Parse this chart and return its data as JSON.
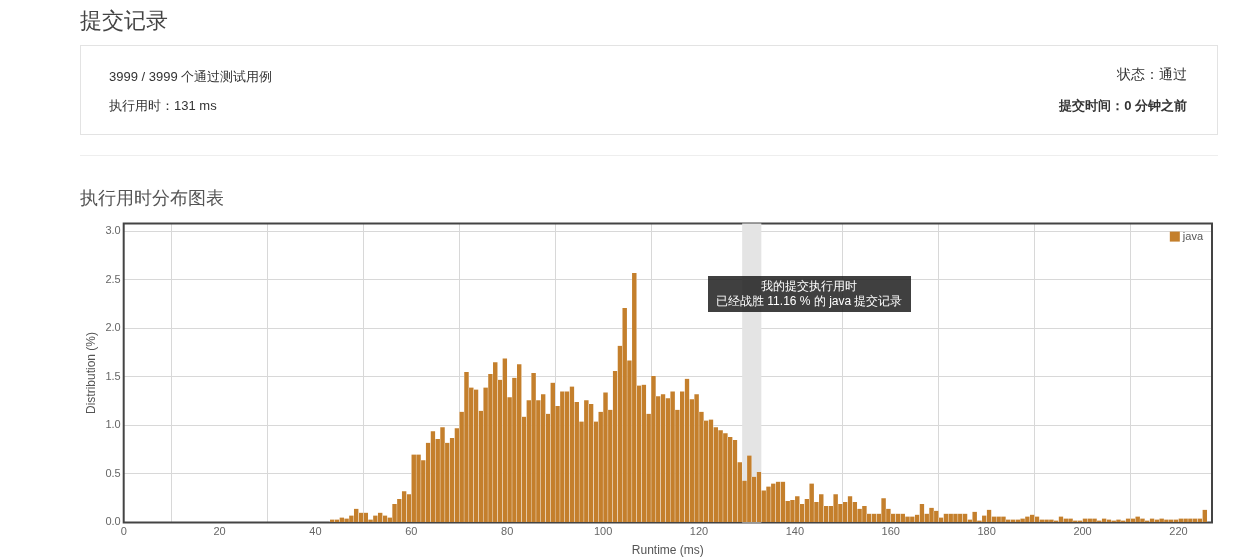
{
  "chart_data": {
    "type": "histogram",
    "title": "执行用时分布图表",
    "xlabel": "Runtime (ms)",
    "ylabel": "Distribution (%)",
    "annotations": [
      "提交记录",
      "3999 / 3999 个通过测试用例",
      "执行用时：131 ms",
      "状态：通过",
      "提交时间：0 分钟之前",
      "我的提交执行用时",
      "已经战胜 11.16 % 的 java 提交记录"
    ],
    "bins": [
      43,
      44,
      45,
      46,
      47,
      48,
      49,
      50,
      51,
      52,
      53,
      54,
      55,
      56,
      57,
      58,
      59,
      60,
      61,
      62,
      63,
      64,
      65,
      66,
      67,
      68,
      69,
      70,
      71,
      72,
      73,
      74,
      75,
      76,
      77,
      78,
      79,
      80,
      81,
      82,
      83,
      84,
      85,
      86,
      87,
      88,
      89,
      90,
      91,
      92,
      93,
      94,
      95,
      96,
      97,
      98,
      99,
      100,
      101,
      102,
      103,
      104,
      105,
      106,
      107,
      108,
      109,
      110,
      111,
      112,
      113,
      114,
      115,
      116,
      117,
      118,
      119,
      120,
      121,
      122,
      123,
      124,
      125,
      126,
      127,
      128,
      129,
      130,
      131,
      132,
      133,
      134,
      135,
      136,
      137,
      138,
      139,
      140,
      141,
      142,
      143,
      144,
      145,
      146,
      147,
      148,
      149,
      150,
      151,
      152,
      153,
      154,
      155,
      156,
      157,
      158,
      159,
      160,
      161,
      162,
      163,
      164,
      165,
      166,
      167,
      168,
      169,
      170,
      171,
      172,
      173,
      174,
      175,
      176,
      177,
      178,
      179,
      180,
      181,
      182,
      183,
      184,
      185,
      186,
      187,
      188,
      189,
      190,
      191,
      192,
      193,
      194,
      195,
      196,
      197,
      198,
      199,
      200,
      201,
      202,
      203,
      204,
      205,
      206,
      207,
      208,
      209,
      210,
      211,
      212,
      213,
      214,
      215,
      216,
      217,
      218,
      219,
      220,
      221,
      222,
      223,
      224,
      225,
      226
    ],
    "series": [
      {
        "name": "java",
        "color": "#c47f2c",
        "values": [
          0.03,
          0.03,
          0.05,
          0.04,
          0.07,
          0.14,
          0.1,
          0.1,
          0.03,
          0.07,
          0.1,
          0.07,
          0.05,
          0.19,
          0.24,
          0.32,
          0.29,
          0.7,
          0.7,
          0.64,
          0.82,
          0.94,
          0.86,
          0.98,
          0.82,
          0.87,
          0.97,
          1.14,
          1.55,
          1.39,
          1.37,
          1.15,
          1.39,
          1.53,
          1.65,
          1.47,
          1.69,
          1.29,
          1.49,
          1.63,
          1.09,
          1.26,
          1.54,
          1.26,
          1.32,
          1.12,
          1.44,
          1.2,
          1.35,
          1.35,
          1.4,
          1.24,
          1.04,
          1.26,
          1.22,
          1.04,
          1.14,
          1.34,
          1.16,
          1.56,
          1.82,
          2.21,
          1.67,
          2.57,
          1.41,
          1.42,
          1.12,
          1.51,
          1.3,
          1.32,
          1.28,
          1.35,
          1.16,
          1.35,
          1.48,
          1.27,
          1.32,
          1.14,
          1.05,
          1.06,
          0.98,
          0.95,
          0.92,
          0.88,
          0.85,
          0.62,
          0.43,
          0.69,
          0.47,
          0.52,
          0.33,
          0.37,
          0.4,
          0.42,
          0.42,
          0.22,
          0.23,
          0.27,
          0.19,
          0.24,
          0.4,
          0.21,
          0.29,
          0.17,
          0.17,
          0.29,
          0.19,
          0.21,
          0.27,
          0.21,
          0.14,
          0.17,
          0.09,
          0.09,
          0.09,
          0.25,
          0.14,
          0.09,
          0.09,
          0.09,
          0.06,
          0.06,
          0.08,
          0.19,
          0.09,
          0.15,
          0.12,
          0.05,
          0.09,
          0.09,
          0.09,
          0.09,
          0.09,
          0.03,
          0.11,
          0.02,
          0.07,
          0.13,
          0.06,
          0.06,
          0.06,
          0.03,
          0.03,
          0.03,
          0.04,
          0.06,
          0.08,
          0.06,
          0.03,
          0.03,
          0.03,
          0.02,
          0.06,
          0.04,
          0.04,
          0.02,
          0.02,
          0.04,
          0.04,
          0.04,
          0.02,
          0.04,
          0.03,
          0.02,
          0.03,
          0.02,
          0.04,
          0.04,
          0.06,
          0.04,
          0.02,
          0.04,
          0.03,
          0.04,
          0.03,
          0.03,
          0.03,
          0.04,
          0.04,
          0.04,
          0.04,
          0.04,
          0.13
        ]
      }
    ],
    "bands": [
      {
        "axis": "x",
        "from": 129,
        "to": 133,
        "color": "#e4e4e4"
      }
    ],
    "xlim": [
      0,
      227
    ],
    "xticks": [
      0,
      20,
      40,
      60,
      80,
      100,
      120,
      140,
      160,
      180,
      200,
      220
    ],
    "ylim": [
      0,
      3.08
    ],
    "yticks": [
      {
        "value": 0,
        "label": "0.0"
      },
      {
        "value": 0.5,
        "label": "0.5"
      },
      {
        "value": 1,
        "label": "1.0"
      },
      {
        "value": 1.5,
        "label": "1.5"
      },
      {
        "value": 2,
        "label": "2.0"
      },
      {
        "value": 2.5,
        "label": "2.5"
      },
      {
        "value": 3,
        "label": "3.0"
      }
    ],
    "grid": true,
    "legend": "top right"
  }
}
